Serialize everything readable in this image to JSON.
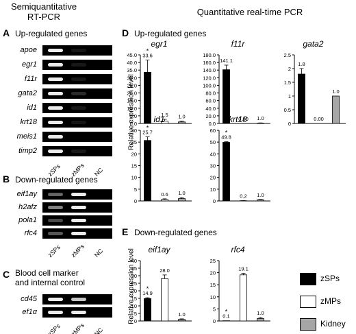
{
  "headers": {
    "left": [
      "Semiquantitative",
      "RT-PCR"
    ],
    "right": "Quantitative real-time PCR"
  },
  "panel_A": {
    "label": "A",
    "title": "Up-regulated genes",
    "genes": [
      "apoe",
      "egr1",
      "f11r",
      "gata2",
      "id1",
      "krt18",
      "meis1",
      "timp2"
    ],
    "bands": [
      [
        1.0,
        0.15,
        0
      ],
      [
        1.0,
        0.2,
        0
      ],
      [
        1.0,
        0.2,
        0
      ],
      [
        1.0,
        0.35,
        0
      ],
      [
        1.0,
        0.2,
        0
      ],
      [
        1.0,
        0.15,
        0
      ],
      [
        1.0,
        0.0,
        0
      ],
      [
        1.0,
        0.2,
        0
      ]
    ]
  },
  "panel_B": {
    "label": "B",
    "title": "Down-regulated genes",
    "genes": [
      "eif1ay",
      "h2afz",
      "pola1",
      "rfc4"
    ],
    "bands": [
      [
        0.6,
        1.0,
        0
      ],
      [
        0.7,
        1.0,
        0
      ],
      [
        0.5,
        1.0,
        0
      ],
      [
        0.55,
        1.0,
        0
      ]
    ]
  },
  "panel_C": {
    "label": "C",
    "title_lines": [
      "Blood cell marker",
      "and internal  control"
    ],
    "genes": [
      "cd45",
      "ef1α"
    ],
    "bands": [
      [
        1.0,
        0.9,
        0
      ],
      [
        1.0,
        1.0,
        0
      ]
    ]
  },
  "lanes": [
    "zSPs",
    "zMPs",
    "NC"
  ],
  "panel_D": {
    "label": "D",
    "title": "Up-regulated genes"
  },
  "panel_E": {
    "label": "E",
    "title": "Down-regulated genes"
  },
  "ylabel": "Relative expression level",
  "legend": [
    {
      "label": "zSPs",
      "color": "#000000"
    },
    {
      "label": "zMPs",
      "color": "#ffffff"
    },
    {
      "label": "Kidney",
      "color": "#a6a6a6"
    }
  ],
  "chart_data": [
    {
      "type": "bar",
      "title": "egr1",
      "categories": [
        "zSPs",
        "zMPs",
        "Kidney"
      ],
      "values": [
        33.6,
        1.5,
        1.0
      ],
      "labels": [
        "33.6",
        "1.5",
        "1.0"
      ],
      "err": [
        8,
        1.2,
        0.5
      ],
      "star": [
        true,
        false,
        false
      ],
      "ylim": [
        0,
        45
      ],
      "yticks": [
        "0.0",
        "5.0",
        "10.0",
        "15.0",
        "20.0",
        "25.0",
        "30.0",
        "35.0",
        "40.0",
        "45.0"
      ]
    },
    {
      "type": "bar",
      "title": "f11r",
      "categories": [
        "zSPs",
        "zMPs",
        "Kidney"
      ],
      "values": [
        141.1,
        0.0,
        1.0
      ],
      "labels": [
        "141.1",
        "0.00",
        "1.0"
      ],
      "err": [
        12,
        0,
        0.5
      ],
      "star": [
        false,
        false,
        false
      ],
      "ylim": [
        0,
        180
      ],
      "yticks": [
        "0.0",
        "20.0",
        "40.0",
        "60.0",
        "80.0",
        "100.0",
        "120.0",
        "140.0",
        "160.0",
        "180.0"
      ]
    },
    {
      "type": "bar",
      "title": "gata2",
      "categories": [
        "zSPs",
        "zMPs",
        "Kidney"
      ],
      "values": [
        1.8,
        0.0,
        1.0
      ],
      "labels": [
        "1.8",
        "0.00",
        "1.0"
      ],
      "err": [
        0.2,
        0,
        0
      ],
      "star": [
        false,
        false,
        false
      ],
      "ylim": [
        0,
        2.5
      ],
      "yticks": [
        "0",
        "0.5",
        "1",
        "1.5",
        "2",
        "2.5"
      ]
    },
    {
      "type": "bar",
      "title": "id1",
      "categories": [
        "zSPs",
        "zMPs",
        "Kidney"
      ],
      "values": [
        25.7,
        0.6,
        1.0
      ],
      "labels": [
        "25.7",
        "0.6",
        "1.0"
      ],
      "err": [
        1.5,
        0.3,
        0.4
      ],
      "star": [
        true,
        false,
        false
      ],
      "ylim": [
        0,
        30
      ],
      "yticks": [
        "0",
        "5",
        "10",
        "15",
        "20",
        "25",
        "30"
      ]
    },
    {
      "type": "bar",
      "title": "krt18",
      "categories": [
        "zSPs",
        "zMPs",
        "Kidney"
      ],
      "values": [
        49.8,
        0.2,
        1.0
      ],
      "labels": [
        "49.8",
        "0.2",
        "1.0"
      ],
      "err": [
        0.5,
        0.1,
        0.3
      ],
      "star": [
        true,
        false,
        false
      ],
      "ylim": [
        0,
        60
      ],
      "yticks": [
        "0",
        "10",
        "20",
        "30",
        "40",
        "50",
        "60"
      ]
    },
    {
      "type": "bar",
      "title": "eif1ay",
      "categories": [
        "zSPs",
        "zMPs",
        "Kidney"
      ],
      "values": [
        14.9,
        28.0,
        1.0
      ],
      "labels": [
        "14.9",
        "28.0",
        "1.0"
      ],
      "err": [
        0.5,
        2.5,
        0.4
      ],
      "star": [
        true,
        false,
        false
      ],
      "ylim": [
        0,
        40
      ],
      "yticks": [
        "0",
        "5",
        "10",
        "15",
        "20",
        "25",
        "30",
        "35",
        "40"
      ]
    },
    {
      "type": "bar",
      "title": "rfc4",
      "categories": [
        "zSPs",
        "zMPs",
        "Kidney"
      ],
      "values": [
        0.1,
        19.1,
        1.0
      ],
      "labels": [
        "0.1",
        "19.1",
        "1.0"
      ],
      "err": [
        0,
        0.6,
        0.4
      ],
      "star": [
        true,
        false,
        false
      ],
      "ylim": [
        0,
        25
      ],
      "yticks": [
        "0",
        "5",
        "10",
        "15",
        "20",
        "25"
      ]
    }
  ]
}
